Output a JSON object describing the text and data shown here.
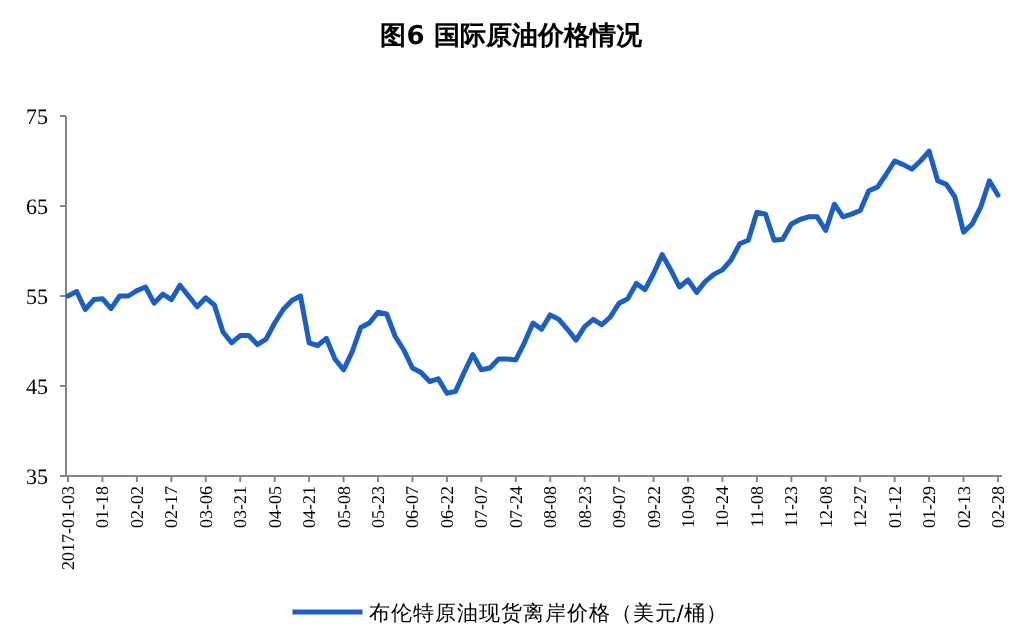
{
  "chart_data": {
    "type": "line",
    "title": "图6  国际原油价格情况",
    "categories": [
      "2017-01-03",
      null,
      null,
      null,
      "01-18",
      null,
      null,
      null,
      "02-02",
      null,
      null,
      null,
      "02-17",
      null,
      null,
      null,
      "03-06",
      null,
      null,
      null,
      "03-21",
      null,
      null,
      null,
      "04-05",
      null,
      null,
      null,
      "04-21",
      null,
      null,
      null,
      "05-08",
      null,
      null,
      null,
      "05-23",
      null,
      null,
      null,
      "06-07",
      null,
      null,
      null,
      "06-22",
      null,
      null,
      null,
      "07-07",
      null,
      null,
      null,
      "07-24",
      null,
      null,
      null,
      "08-08",
      null,
      null,
      null,
      "08-23",
      null,
      null,
      null,
      "09-07",
      null,
      null,
      null,
      "09-22",
      null,
      null,
      null,
      "10-09",
      null,
      null,
      null,
      "10-24",
      null,
      null,
      null,
      "11-08",
      null,
      null,
      null,
      "11-23",
      null,
      null,
      null,
      "12-08",
      null,
      null,
      null,
      "12-27",
      null,
      null,
      null,
      "01-12",
      null,
      null,
      null,
      "01-29",
      null,
      null,
      null,
      "02-13",
      null,
      null,
      null,
      "02-28"
    ],
    "series": [
      {
        "name": "布伦特原油现货离岸价格（美元/桶）",
        "color": "#1c5fc0",
        "values": [
          55.0,
          55.5,
          53.5,
          54.6,
          54.7,
          53.6,
          55.0,
          55.0,
          55.6,
          56.0,
          54.2,
          55.2,
          54.6,
          56.2,
          55.0,
          53.8,
          54.8,
          54.0,
          51.0,
          49.8,
          50.6,
          50.6,
          49.6,
          50.2,
          52.0,
          53.5,
          54.5,
          55.0,
          49.8,
          49.5,
          50.3,
          48.0,
          46.8,
          48.8,
          51.5,
          52.0,
          53.2,
          53.0,
          50.5,
          49.0,
          47.0,
          46.5,
          45.5,
          45.8,
          44.2,
          44.4,
          46.5,
          48.5,
          46.8,
          47.0,
          48.0,
          48.0,
          47.9,
          49.8,
          52.0,
          51.3,
          52.9,
          52.4,
          51.3,
          50.1,
          51.6,
          52.4,
          51.8,
          52.7,
          54.2,
          54.7,
          56.4,
          55.7,
          57.5,
          59.6,
          57.9,
          56.0,
          56.8,
          55.4,
          56.6,
          57.4,
          57.9,
          59.0,
          60.8,
          61.2,
          64.3,
          64.1,
          61.2,
          61.3,
          63.0,
          63.5,
          63.8,
          63.8,
          62.3,
          65.2,
          63.8,
          64.1,
          64.5,
          66.7,
          67.1,
          68.5,
          70.0,
          69.6,
          69.1,
          70.0,
          71.1,
          67.8,
          67.4,
          66.0,
          62.1,
          63.0,
          64.9,
          67.8,
          66.2
        ]
      }
    ],
    "ylim": [
      35,
      75
    ],
    "yticks": [
      35,
      45,
      55,
      65,
      75
    ],
    "legend": "bottom"
  }
}
